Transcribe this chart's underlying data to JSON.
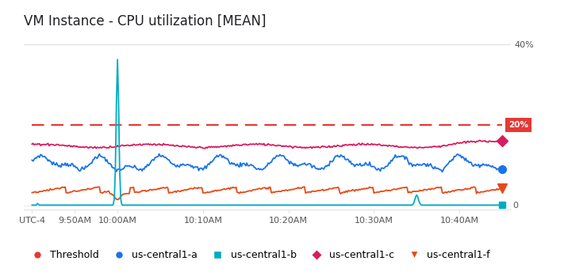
{
  "title": "VM Instance - CPU utilization [MEAN]",
  "threshold_value": 20,
  "threshold_label": "20%",
  "colors": {
    "threshold": "#E53935",
    "us_central1_a": "#1A73E8",
    "us_central1_b": "#00ACC1",
    "us_central1_c": "#D81B60",
    "us_central1_f": "#E64A19"
  },
  "background": "#ffffff",
  "grid_color": "#e0e0e0",
  "legend_labels": [
    "Threshold",
    "us-central1-a",
    "us-central1-b",
    "us-central1-c",
    "us-central1-f"
  ],
  "ylim_min": -1,
  "ylim_max": 42,
  "xlim_min": -2,
  "xlim_max": 112
}
